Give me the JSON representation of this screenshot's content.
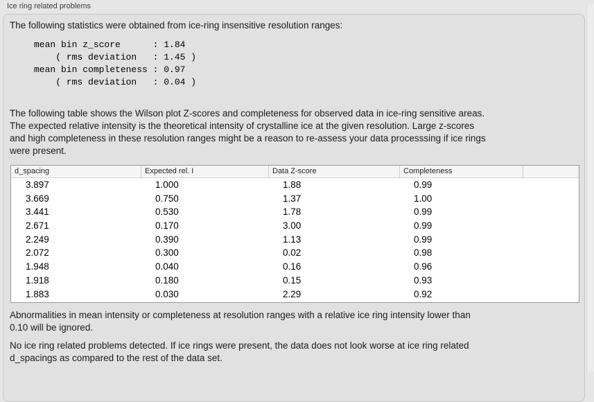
{
  "panel": {
    "title": "Ice ring related problems"
  },
  "intro": "The following statistics were obtained from ice-ring insensitive resolution ranges:",
  "stats_block": "mean bin z_score      : 1.84\n    ( rms deviation   : 1.45 )\nmean bin completeness : 0.97\n    ( rms deviation   : 0.04 )",
  "description_lines": [
    "The following table shows the Wilson plot Z-scores and completeness for observed data in ice-ring sensitive areas.",
    "The expected relative intensity is the theoretical intensity of crystalline ice at the given resolution. Large z-scores",
    "and high completeness in these resolution ranges might be a reason to re-assess your data processsing if ice rings",
    "were present."
  ],
  "table": {
    "columns": [
      "d_spacing",
      "Expected rel. I",
      "Data Z-score",
      "Completeness"
    ],
    "rows": [
      [
        "3.897",
        "1.000",
        "1.88",
        "0.99"
      ],
      [
        "3.669",
        "0.750",
        "1.37",
        "1.00"
      ],
      [
        "3.441",
        "0.530",
        "1.78",
        "0.99"
      ],
      [
        "2.671",
        "0.170",
        "3.00",
        "0.99"
      ],
      [
        "2.249",
        "0.390",
        "1.13",
        "0.99"
      ],
      [
        "2.072",
        "0.300",
        "0.02",
        "0.98"
      ],
      [
        "1.948",
        "0.040",
        "0.16",
        "0.96"
      ],
      [
        "1.918",
        "0.180",
        "0.15",
        "0.93"
      ],
      [
        "1.883",
        "0.030",
        "2.29",
        "0.92"
      ]
    ]
  },
  "note_lines": [
    "Abnormalities in mean intensity or completeness at resolution ranges with a relative ice ring intensity lower than",
    "0.10 will be ignored."
  ],
  "conclusion_lines": [
    "No ice ring related problems detected. If ice rings were present, the data does not look worse at ice ring related",
    "d_spacings as compared to the rest of the data set."
  ],
  "colors": {
    "background": "#e6e6e6",
    "panel_background": "#e1e1e1",
    "panel_border": "#c7c7c7",
    "table_border": "#999999",
    "table_header_background": "#f5f5f5",
    "text": "#1b1b1b"
  }
}
